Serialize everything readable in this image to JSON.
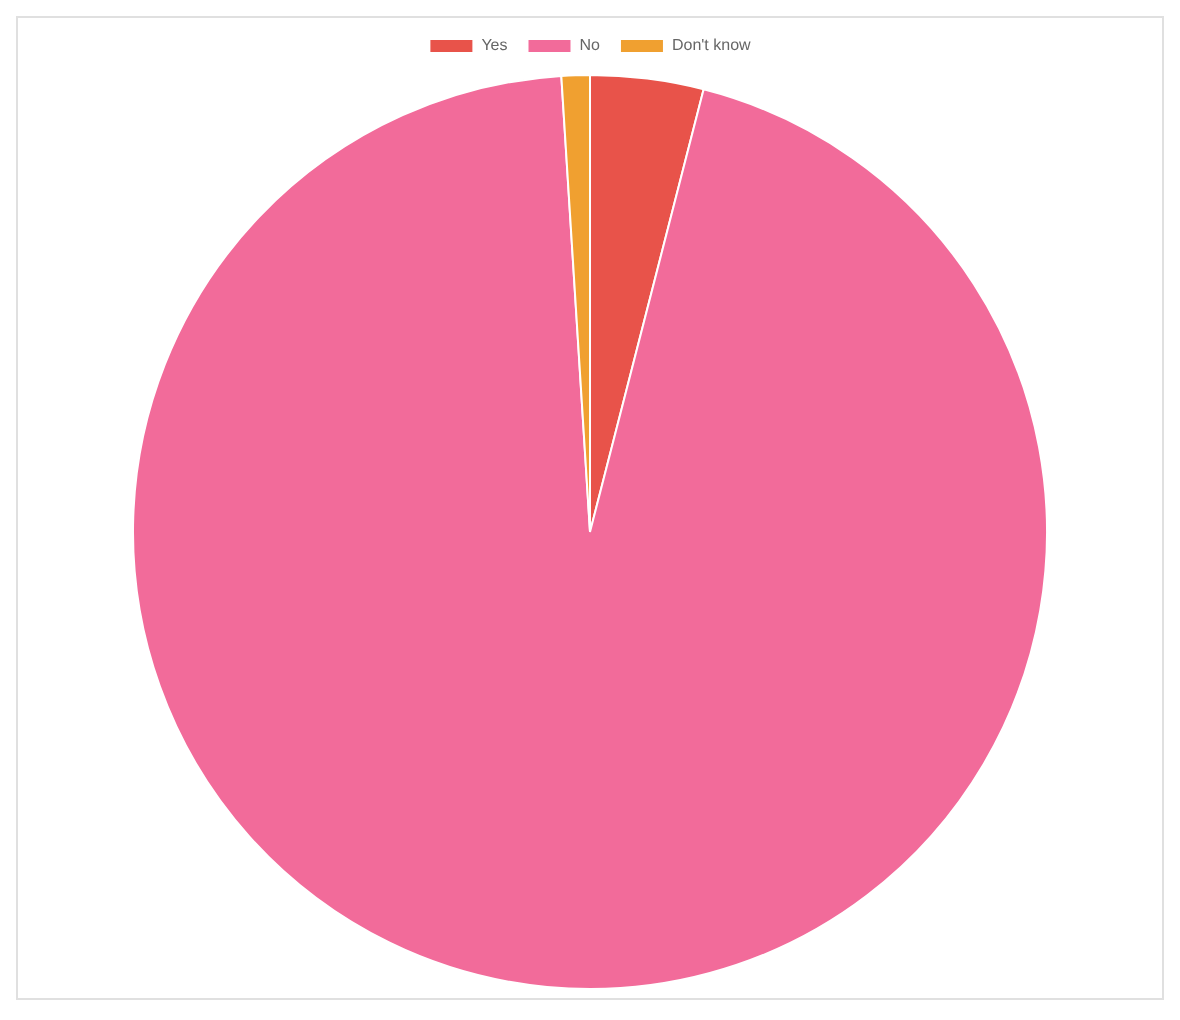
{
  "chart_data": {
    "type": "pie",
    "categories": [
      "Yes",
      "No",
      "Don't know"
    ],
    "values": [
      4,
      95,
      1
    ],
    "colors": [
      "#e8534a",
      "#f26b9a",
      "#f0a030"
    ],
    "legend": "top"
  }
}
